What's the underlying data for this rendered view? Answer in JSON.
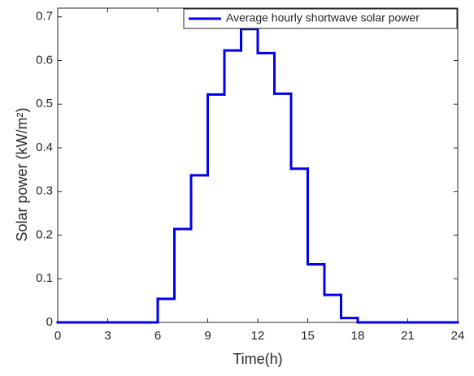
{
  "chart_data": {
    "type": "stairs",
    "x_label": "Time(h)",
    "y_label": "Solar power (kW/m²)",
    "x": [
      0,
      1,
      2,
      3,
      4,
      5,
      6,
      7,
      8,
      9,
      10,
      11,
      12,
      13,
      14,
      15,
      16,
      17,
      18,
      19,
      20,
      21,
      22,
      23,
      24
    ],
    "series": [
      {
        "name": "Average hourly shortwave solar power",
        "color": "#0000ee",
        "values": [
          0,
          0,
          0,
          0,
          0,
          0,
          0.054,
          0.214,
          0.337,
          0.522,
          0.623,
          0.672,
          0.617,
          0.524,
          0.352,
          0.133,
          0.063,
          0.01,
          0,
          0,
          0,
          0,
          0,
          0,
          0
        ]
      }
    ],
    "xlim": [
      0,
      24
    ],
    "xticks": [
      0,
      3,
      6,
      9,
      12,
      15,
      18,
      21,
      24
    ],
    "ylim": [
      0,
      0.72
    ],
    "yticks": [
      0,
      0.1,
      0.2,
      0.3,
      0.4,
      0.5,
      0.6,
      0.7
    ],
    "legend": "top-right",
    "grid": false
  }
}
